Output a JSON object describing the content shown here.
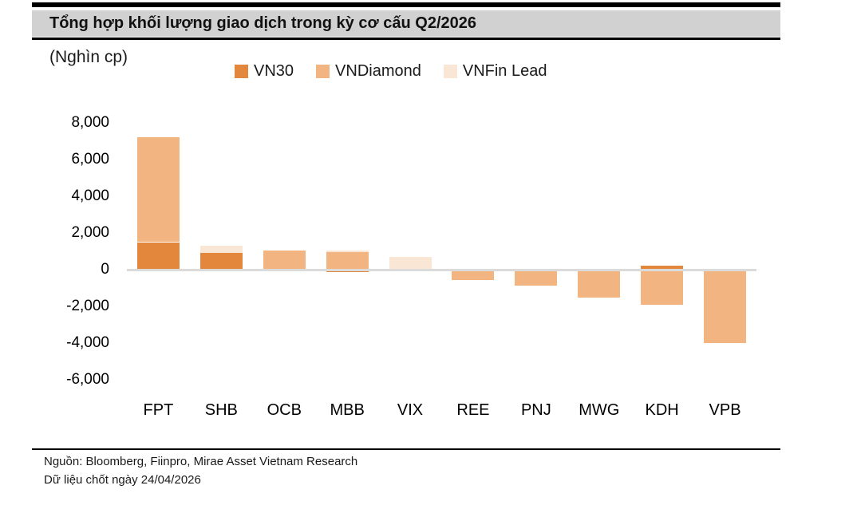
{
  "header": {
    "title": "Tổng hợp khối lượng giao dịch trong kỳ cơ cấu Q2/2026"
  },
  "chart_data": {
    "type": "bar",
    "stacked": true,
    "title": "Tổng hợp khối lượng giao dịch trong kỳ cơ cấu Q2/2026",
    "unit_label": "(Nghìn cp)",
    "categories": [
      "FPT",
      "SHB",
      "OCB",
      "MBB",
      "VIX",
      "REE",
      "PNJ",
      "MWG",
      "KDH",
      "VPB"
    ],
    "series": [
      {
        "name": "VN30",
        "color": "#E2873B",
        "values": [
          1500,
          900,
          0,
          -150,
          0,
          0,
          0,
          0,
          200,
          0
        ]
      },
      {
        "name": "VNDiamond",
        "color": "#F2B480",
        "values": [
          5700,
          0,
          1050,
          950,
          0,
          -550,
          -850,
          -1500,
          -1900,
          -4000
        ]
      },
      {
        "name": "VNFin Lead",
        "color": "#FAE6D4",
        "values": [
          0,
          400,
          0,
          100,
          700,
          0,
          0,
          0,
          0,
          0
        ]
      }
    ],
    "y_ticks": [
      {
        "label": "8,000",
        "value": 8000
      },
      {
        "label": "6,000",
        "value": 6000
      },
      {
        "label": "4,000",
        "value": 4000
      },
      {
        "label": "2,000",
        "value": 2000
      },
      {
        "label": "0",
        "value": 0
      },
      {
        "label": "-2,000",
        "value": -2000
      },
      {
        "label": "-4,000",
        "value": -4000
      },
      {
        "label": "-6,000",
        "value": -6000
      }
    ],
    "ylim": [
      -6000,
      8000
    ],
    "legend_position": "top",
    "grid": false
  },
  "footer": {
    "source": "Nguồn: Bloomberg, Fiinpro, Mirae Asset Vietnam Research",
    "data_note": "Dữ liệu chốt ngày 24/04/2026"
  },
  "colors": {
    "title_band_bg": "#D1D1D1",
    "zero_line": "#DBDBDB",
    "rule": "#000000"
  }
}
